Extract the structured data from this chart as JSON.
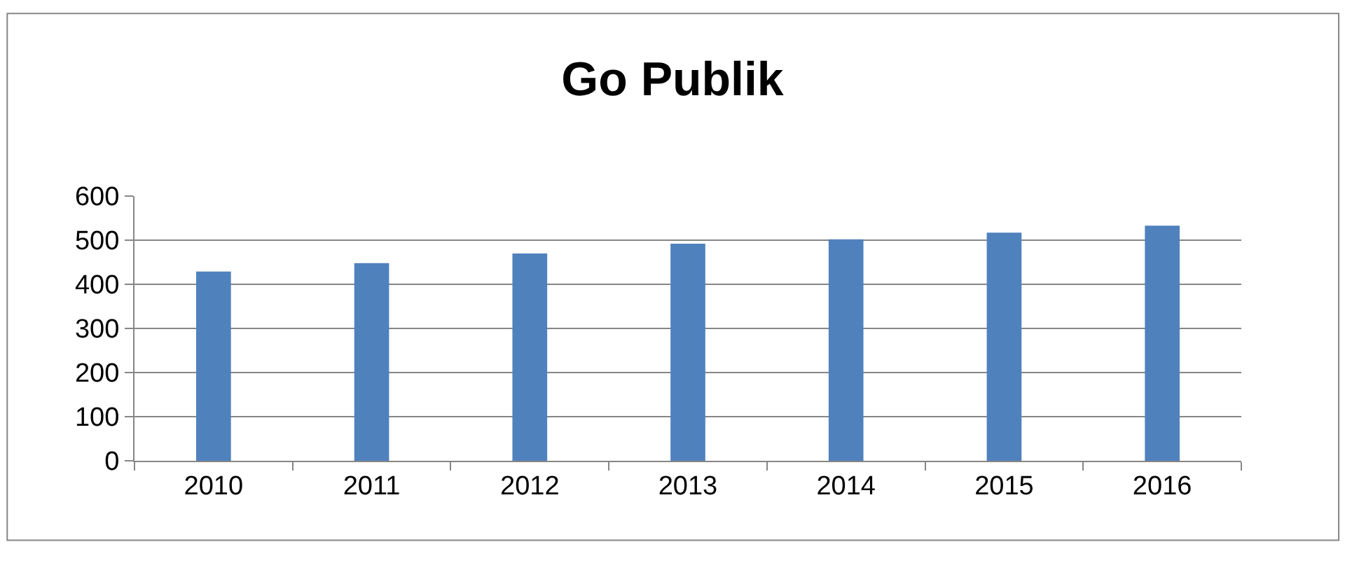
{
  "chart_data": {
    "type": "bar",
    "title": "Go Publik",
    "categories": [
      "2010",
      "2011",
      "2012",
      "2013",
      "2014",
      "2015",
      "2016"
    ],
    "values": [
      429,
      448,
      470,
      492,
      502,
      517,
      533
    ],
    "color": "#4f81bd",
    "ylim": [
      0,
      600
    ],
    "yticks": [
      0,
      100,
      200,
      300,
      400,
      500,
      600
    ],
    "grid": "y",
    "legend": false
  }
}
